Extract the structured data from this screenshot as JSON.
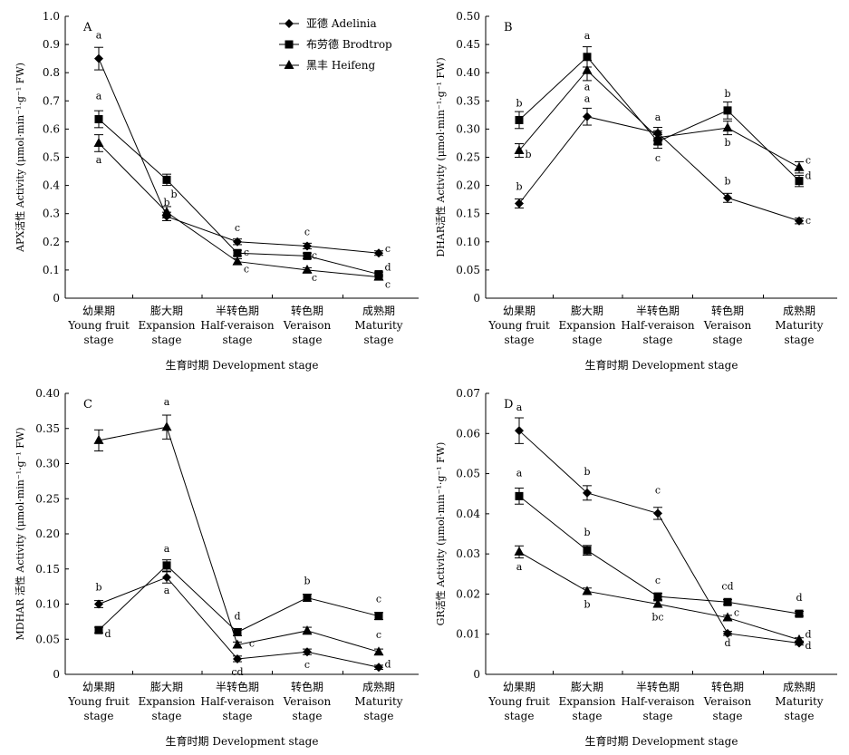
{
  "figure": {
    "xlabel": "生育时期 Development stage",
    "stages": [
      [
        "幼果期",
        "Young fruit",
        "stage"
      ],
      [
        "膨大期",
        "Expansion",
        "stage"
      ],
      [
        "半转色期",
        "Half-veraison",
        "stage"
      ],
      [
        "转色期",
        "Veraison",
        "stage"
      ],
      [
        "成熟期",
        "Maturity",
        "stage"
      ]
    ],
    "legend": [
      "亚德 Adelinia",
      "布劳德 Brodtrop",
      "黑丰 Heifeng"
    ],
    "colors": {
      "axis": "#000000",
      "series": "#000000",
      "background": "#ffffff"
    }
  },
  "chart_data": [
    {
      "type": "line",
      "panel": "A",
      "ylabel": "APX活性 Activity (μmol·min⁻¹·g⁻¹ FW)",
      "ylim": [
        0,
        1.0
      ],
      "yticks": [
        "0",
        "0.1",
        "0.2",
        "0.3",
        "0.4",
        "0.5",
        "0.6",
        "0.7",
        "0.8",
        "0.9",
        "1.0"
      ],
      "categories": [
        "Young fruit stage",
        "Expansion stage",
        "Half-veraison stage",
        "Veraison stage",
        "Maturity stage"
      ],
      "legend_position": "top-right",
      "series": [
        {
          "name": "亚德 Adelinia",
          "marker": "diamond",
          "values": [
            0.85,
            0.29,
            0.2,
            0.185,
            0.16
          ],
          "errors": [
            0.04,
            0.015,
            0.01,
            0.01,
            0.008
          ],
          "letters": [
            "a",
            "b",
            "c",
            "c",
            "c"
          ]
        },
        {
          "name": "布劳德 Brodtrop",
          "marker": "square",
          "values": [
            0.635,
            0.42,
            0.16,
            0.15,
            0.085
          ],
          "errors": [
            0.03,
            0.02,
            0.01,
            0.01,
            0.008
          ],
          "letters": [
            "a",
            "",
            "c",
            "c",
            "d"
          ]
        },
        {
          "name": "黑丰 Heifeng",
          "marker": "triangle",
          "values": [
            0.55,
            0.305,
            0.13,
            0.1,
            0.075
          ],
          "errors": [
            0.03,
            0.02,
            0.01,
            0.008,
            0.008
          ],
          "letters": [
            "a",
            "b",
            "c",
            "c",
            "c"
          ]
        }
      ]
    },
    {
      "type": "line",
      "panel": "B",
      "ylabel": "DHAR活性 Activity (μmol·min⁻¹·g⁻¹ FW)",
      "ylim": [
        0,
        0.5
      ],
      "yticks": [
        "0",
        "0.05",
        "0.10",
        "0.15",
        "0.20",
        "0.25",
        "0.30",
        "0.35",
        "0.40",
        "0.45",
        "0.50"
      ],
      "categories": [
        "Young fruit stage",
        "Expansion stage",
        "Half-veraison stage",
        "Veraison stage",
        "Maturity stage"
      ],
      "series": [
        {
          "name": "亚德 Adelinia",
          "marker": "diamond",
          "values": [
            0.168,
            0.322,
            0.293,
            0.178,
            0.137
          ],
          "errors": [
            0.008,
            0.015,
            0.01,
            0.008,
            0.005
          ],
          "letters": [
            "b",
            "a",
            "a",
            "b",
            "c"
          ]
        },
        {
          "name": "布劳德 Brodtrop",
          "marker": "square",
          "values": [
            0.316,
            0.428,
            0.278,
            0.333,
            0.208
          ],
          "errors": [
            0.015,
            0.018,
            0.012,
            0.015,
            0.01
          ],
          "letters": [
            "b",
            "a",
            "c",
            "b",
            "d"
          ]
        },
        {
          "name": "黑丰 Heifeng",
          "marker": "triangle",
          "values": [
            0.262,
            0.404,
            0.285,
            0.302,
            0.232
          ],
          "errors": [
            0.012,
            0.018,
            0.012,
            0.012,
            0.01
          ],
          "letters": [
            "b",
            "a",
            "",
            "b",
            "c"
          ]
        }
      ]
    },
    {
      "type": "line",
      "panel": "C",
      "ylabel": "MDHAR 活性 Activity (μmol·min⁻¹·g⁻¹ FW)",
      "ylim": [
        0,
        0.4
      ],
      "yticks": [
        "0",
        "0.05",
        "0.10",
        "0.15",
        "0.20",
        "0.25",
        "0.30",
        "0.35",
        "0.40"
      ],
      "categories": [
        "Young fruit stage",
        "Expansion stage",
        "Half-veraison stage",
        "Veraison stage",
        "Maturity stage"
      ],
      "series": [
        {
          "name": "亚德 Adelinia",
          "marker": "diamond",
          "values": [
            0.1,
            0.138,
            0.022,
            0.032,
            0.01
          ],
          "errors": [
            0.005,
            0.008,
            0.004,
            0.004,
            0.003
          ],
          "letters": [
            "b",
            "a",
            "cd",
            "c",
            "d"
          ]
        },
        {
          "name": "布劳德 Brodtrop",
          "marker": "square",
          "values": [
            0.063,
            0.155,
            0.06,
            0.109,
            0.083
          ],
          "errors": [
            0.004,
            0.008,
            0.005,
            0.005,
            0.005
          ],
          "letters": [
            "d",
            "a",
            "d",
            "b",
            "c"
          ]
        },
        {
          "name": "黑丰 Heifeng",
          "marker": "triangle",
          "values": [
            0.333,
            0.352,
            0.042,
            0.062,
            0.032
          ],
          "errors": [
            0.015,
            0.017,
            0.004,
            0.005,
            0.004
          ],
          "letters": [
            "",
            "a",
            "c",
            "",
            "c"
          ]
        }
      ]
    },
    {
      "type": "line",
      "panel": "D",
      "ylabel": "GR活性 Activity (μmol·min⁻¹·g⁻¹ FW)",
      "ylim": [
        0,
        0.07
      ],
      "yticks": [
        "0",
        "0.01",
        "0.02",
        "0.03",
        "0.04",
        "0.05",
        "0.06",
        "0.07"
      ],
      "categories": [
        "Young fruit stage",
        "Expansion stage",
        "Half-veraison stage",
        "Veraison stage",
        "Maturity stage"
      ],
      "series": [
        {
          "name": "亚德 Adelinia",
          "marker": "diamond",
          "values": [
            0.0607,
            0.0452,
            0.0401,
            0.0102,
            0.0078
          ],
          "errors": [
            0.0032,
            0.0018,
            0.0015,
            0.0005,
            0.0005
          ],
          "letters": [
            "a",
            "b",
            "c",
            "d",
            "d"
          ]
        },
        {
          "name": "布劳德 Brodtrop",
          "marker": "square",
          "values": [
            0.0444,
            0.0309,
            0.0194,
            0.018,
            0.0151
          ],
          "errors": [
            0.002,
            0.0012,
            0.0008,
            0.0006,
            0.0006
          ],
          "letters": [
            "a",
            "b",
            "c",
            "cd",
            "d"
          ]
        },
        {
          "name": "黑丰 Heifeng",
          "marker": "triangle",
          "values": [
            0.0305,
            0.0207,
            0.0175,
            0.0141,
            0.0086
          ],
          "errors": [
            0.0015,
            0.0008,
            0.0008,
            0.0006,
            0.0005
          ],
          "letters": [
            "a",
            "b",
            "bc",
            "c",
            "d"
          ]
        }
      ]
    }
  ]
}
